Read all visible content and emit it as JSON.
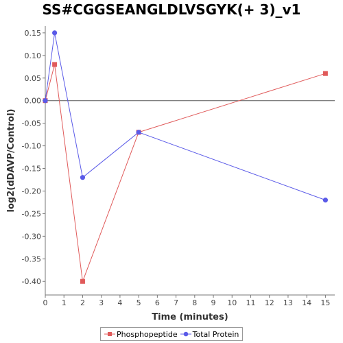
{
  "chart_data": {
    "type": "line",
    "title": "SS#CGGSEANGLDLVSGYK(+ 3)_v1",
    "xlabel": "Time (minutes)",
    "ylabel": "log2(dDAVP/Control)",
    "xlim": [
      0,
      15.5
    ],
    "ylim": [
      -0.43,
      0.165
    ],
    "xticks": [
      0,
      1,
      2,
      3,
      4,
      5,
      6,
      7,
      8,
      9,
      10,
      11,
      12,
      13,
      14,
      15
    ],
    "yticks": [
      0.15,
      0.1,
      0.05,
      0.0,
      -0.05,
      -0.1,
      -0.15,
      -0.2,
      -0.25,
      -0.3,
      -0.35,
      -0.4
    ],
    "ytick_labels": [
      "0.15",
      "0.10",
      "0.05",
      "0.00",
      "-0.05",
      "-0.10",
      "-0.15",
      "-0.20",
      "-0.25",
      "-0.30",
      "-0.35",
      "-0.40"
    ],
    "zero_line": true,
    "grid": false,
    "legend_position": "bottom",
    "series": [
      {
        "name": "Phosphopeptide",
        "color": "#e05a5a",
        "marker": "square",
        "x": [
          0,
          0.5,
          2,
          5,
          15
        ],
        "y": [
          0.0,
          0.08,
          -0.4,
          -0.07,
          0.06
        ]
      },
      {
        "name": "Total Protein",
        "color": "#5a5ae8",
        "marker": "circle",
        "x": [
          0,
          0.5,
          2,
          5,
          15
        ],
        "y": [
          0.0,
          0.15,
          -0.17,
          -0.07,
          -0.22
        ]
      }
    ]
  }
}
